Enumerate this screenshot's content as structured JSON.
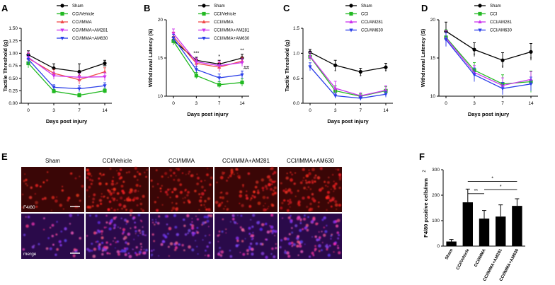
{
  "colors": {
    "sham": "#000000",
    "vehicle": "#22b922",
    "imma": "#f04a4a",
    "am281": "#cc33ee",
    "am630": "#2a3ee8",
    "micro_top": "#3a0606",
    "micro_bottom": "#2a0a4a"
  },
  "panel_labels": [
    "A",
    "B",
    "C",
    "D",
    "E",
    "F"
  ],
  "chart_data": [
    {
      "id": "A",
      "type": "line",
      "title": "",
      "xlabel": "Days post injury",
      "ylabel": "Tactile Threshold (g)",
      "x": [
        0,
        3,
        7,
        14
      ],
      "ylim": [
        0,
        1.5
      ],
      "yticks": [
        "0.00",
        "0.25",
        "0.50",
        "0.75",
        "1.00",
        "1.25",
        "1.50"
      ],
      "legend_position": "top-right",
      "series": [
        {
          "name": "Sham",
          "color_key": "sham",
          "marker": "circle",
          "values": [
            0.97,
            0.7,
            0.63,
            0.8
          ],
          "err": [
            0.08,
            0.09,
            0.16,
            0.06
          ]
        },
        {
          "name": "CCI/Vehicle",
          "color_key": "vehicle",
          "marker": "square",
          "values": [
            0.8,
            0.24,
            0.16,
            0.25
          ],
          "err": [
            0.09,
            0.04,
            0.04,
            0.05
          ]
        },
        {
          "name": "CCI/IMMA",
          "color_key": "imma",
          "marker": "triangle-up",
          "values": [
            0.9,
            0.6,
            0.47,
            0.63
          ],
          "err": [
            0.1,
            0.08,
            0.09,
            0.08
          ]
        },
        {
          "name": "CCI/IMMA+AM281",
          "color_key": "am281",
          "marker": "triangle-down",
          "values": [
            0.92,
            0.55,
            0.52,
            0.53
          ],
          "err": [
            0.1,
            0.07,
            0.08,
            0.08
          ]
        },
        {
          "name": "CCI/IMMA+AM630",
          "color_key": "am630",
          "marker": "triangle-down",
          "values": [
            0.88,
            0.32,
            0.29,
            0.35
          ],
          "err": [
            0.1,
            0.05,
            0.06,
            0.06
          ]
        }
      ],
      "annotations": [
        {
          "x": 3,
          "y": 0.64,
          "text": "*"
        },
        {
          "x": 7,
          "y": 0.53,
          "text": "*"
        },
        {
          "x": 14,
          "y": 0.7,
          "text": "**"
        }
      ]
    },
    {
      "id": "B",
      "type": "line",
      "title": "",
      "xlabel": "Days post injury",
      "ylabel": "Withdrawal Latency (S)",
      "x": [
        0,
        3,
        7,
        14
      ],
      "ylim": [
        10,
        20
      ],
      "yticks": [
        "10",
        "15",
        "20"
      ],
      "legend_position": "top-right",
      "series": [
        {
          "name": "Sham",
          "color_key": "sham",
          "marker": "circle",
          "values": [
            17.3,
            14.7,
            14.2,
            15.0
          ],
          "err": [
            0.5,
            0.4,
            0.5,
            0.5
          ]
        },
        {
          "name": "CCI/Vehicle",
          "color_key": "vehicle",
          "marker": "square",
          "values": [
            17.2,
            12.7,
            11.5,
            11.8
          ],
          "err": [
            0.5,
            0.4,
            0.4,
            0.5
          ]
        },
        {
          "name": "CCI/IMMA",
          "color_key": "imma",
          "marker": "triangle-up",
          "values": [
            17.8,
            14.3,
            13.8,
            14.6
          ],
          "err": [
            0.6,
            0.5,
            0.6,
            0.5
          ]
        },
        {
          "name": "CCI/IMMA+AM281",
          "color_key": "am281",
          "marker": "triangle-down",
          "values": [
            18.2,
            14.5,
            14.0,
            14.4
          ],
          "err": [
            0.6,
            0.5,
            0.6,
            0.5
          ]
        },
        {
          "name": "CCI/IMMA+AM630",
          "color_key": "am630",
          "marker": "triangle-down",
          "values": [
            17.6,
            13.5,
            12.4,
            12.8
          ],
          "err": [
            0.5,
            0.4,
            0.5,
            0.5
          ]
        }
      ],
      "annotations": [
        {
          "x": 3,
          "y": 15.4,
          "text": "***"
        },
        {
          "x": 7,
          "y": 15.0,
          "text": "*"
        },
        {
          "x": 14,
          "y": 15.8,
          "text": "**"
        },
        {
          "x": 14,
          "y": 13.5,
          "text": "##"
        }
      ]
    },
    {
      "id": "C",
      "type": "line",
      "title": "",
      "xlabel": "Days post injury",
      "ylabel": "Tactile Threshold (g)",
      "x": [
        0,
        3,
        7,
        14
      ],
      "ylim": [
        0,
        1.5
      ],
      "yticks": [
        "0.0",
        "0.5",
        "1.0",
        "1.5"
      ],
      "legend_position": "top-right",
      "series": [
        {
          "name": "Sham",
          "color_key": "sham",
          "marker": "circle",
          "values": [
            1.02,
            0.76,
            0.63,
            0.72
          ],
          "err": [
            0.06,
            0.1,
            0.07,
            0.08
          ]
        },
        {
          "name": "CCI",
          "color_key": "vehicle",
          "marker": "square",
          "values": [
            0.93,
            0.25,
            0.14,
            0.25
          ],
          "err": [
            0.08,
            0.1,
            0.05,
            0.08
          ]
        },
        {
          "name": "CCI/AM281",
          "color_key": "am281",
          "marker": "triangle-up",
          "values": [
            0.94,
            0.3,
            0.15,
            0.26
          ],
          "err": [
            0.08,
            0.14,
            0.06,
            0.09
          ]
        },
        {
          "name": "CCI/AM630",
          "color_key": "am630",
          "marker": "triangle-down",
          "values": [
            0.73,
            0.15,
            0.1,
            0.18
          ],
          "err": [
            0.08,
            0.05,
            0.04,
            0.06
          ]
        }
      ],
      "annotations": [
        {
          "x": 3,
          "y": 0.6,
          "text": "*"
        },
        {
          "x": 7,
          "y": 0.5,
          "text": "*"
        },
        {
          "x": 14,
          "y": 0.6,
          "text": "*"
        }
      ]
    },
    {
      "id": "D",
      "type": "line",
      "title": "",
      "xlabel": "Days post injury",
      "ylabel": "Withdrawal Latency (S)",
      "x": [
        0,
        3,
        7,
        14
      ],
      "ylim": [
        10,
        20
      ],
      "yticks": [
        "10",
        "15",
        "20"
      ],
      "legend_position": "top-right",
      "series": [
        {
          "name": "Sham",
          "color_key": "sham",
          "marker": "circle",
          "values": [
            18.5,
            16.1,
            14.7,
            15.8
          ],
          "err": [
            1.2,
            0.9,
            1.0,
            1.1
          ]
        },
        {
          "name": "CCI",
          "color_key": "vehicle",
          "marker": "square",
          "values": [
            17.7,
            13.4,
            11.6,
            11.9
          ],
          "err": [
            1.0,
            1.0,
            1.2,
            1.4
          ]
        },
        {
          "name": "CCI/AM281",
          "color_key": "am281",
          "marker": "triangle-up",
          "values": [
            17.6,
            13.1,
            11.4,
            12.2
          ],
          "err": [
            1.0,
            0.9,
            1.0,
            1.0
          ]
        },
        {
          "name": "CCI/AM630",
          "color_key": "am630",
          "marker": "triangle-down",
          "values": [
            17.4,
            12.8,
            11.0,
            11.6
          ],
          "err": [
            0.9,
            0.9,
            0.8,
            0.9
          ]
        }
      ],
      "annotations": [
        {
          "x": 3,
          "y": 15.2,
          "text": "*"
        },
        {
          "x": 7,
          "y": 13.6,
          "text": "*"
        },
        {
          "x": 14,
          "y": 14.7,
          "text": "*"
        }
      ]
    },
    {
      "id": "F",
      "type": "bar",
      "title": "",
      "xlabel": "",
      "ylabel": "F4/80 positive cells/mm",
      "ylabel_sup": "2",
      "categories": [
        "Sham",
        "CCI/Vehicle",
        "CCI/IMMA",
        "CCI/IMMA+AM281",
        "CCI/IMMA+AM630"
      ],
      "values": [
        18,
        172,
        108,
        116,
        158
      ],
      "err": [
        8,
        52,
        32,
        46,
        28
      ],
      "ylim": [
        0,
        300
      ],
      "yticks": [
        "0",
        "100",
        "200",
        "300"
      ],
      "significance": [
        {
          "from": 1,
          "to": 2,
          "text": "**"
        },
        {
          "from": 1,
          "to": 4,
          "text": "*"
        },
        {
          "from": 2,
          "to": 4,
          "text": "*"
        }
      ]
    }
  ],
  "micrographs": {
    "columns": [
      "Sham",
      "CCI/Vehicle",
      "CCI/IMMA",
      "CCI/IMMA+AM281",
      "CCI/IMMA+AM630"
    ],
    "row_labels": [
      "F4/80",
      "merge"
    ],
    "density": [
      0.15,
      0.85,
      0.55,
      0.6,
      0.75
    ]
  }
}
